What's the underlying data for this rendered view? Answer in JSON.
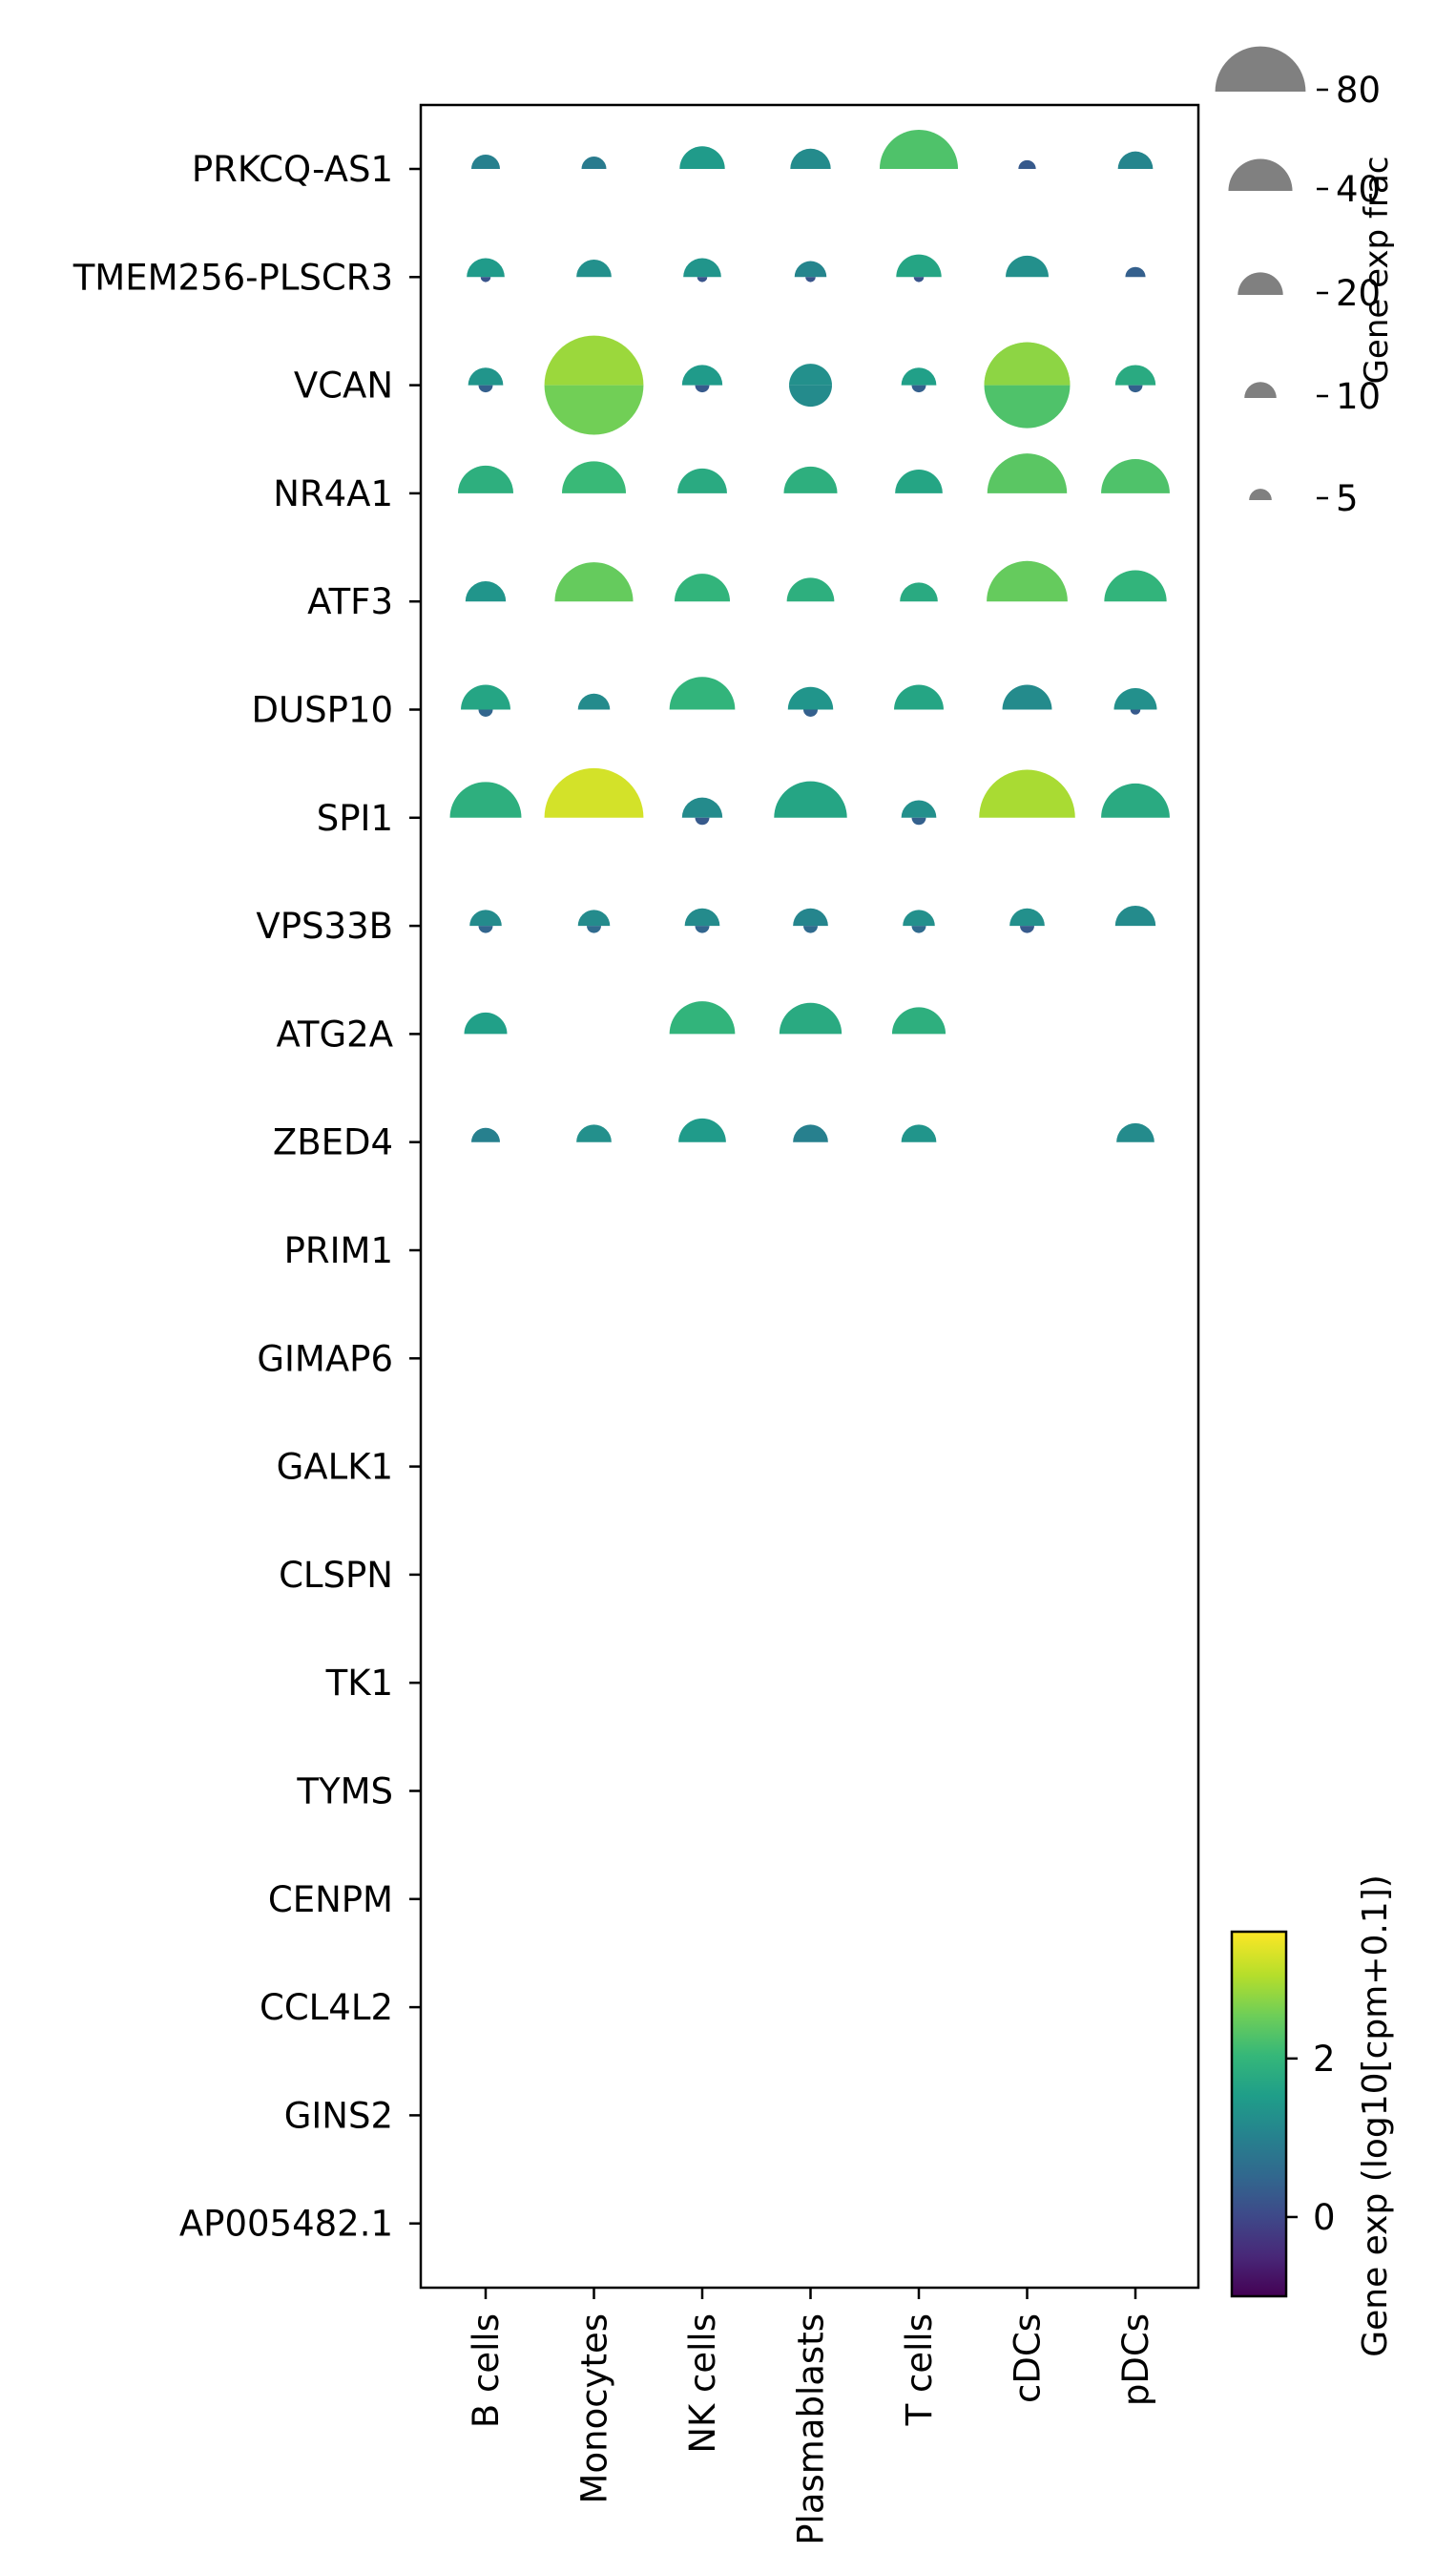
{
  "chart_data": {
    "type": "split-dot-plot",
    "genes": [
      "PRKCQ-AS1",
      "TMEM256-PLSCR3",
      "VCAN",
      "NR4A1",
      "ATF3",
      "DUSP10",
      "SPI1",
      "VPS33B",
      "ATG2A",
      "ZBED4",
      "PRIM1",
      "GIMAP6",
      "GALK1",
      "CLSPN",
      "TK1",
      "TYMS",
      "CENPM",
      "CCL4L2",
      "GINS2",
      "AP005482.1"
    ],
    "cell_types": [
      "B cells",
      "Monocytes",
      "NK cells",
      "Plasmablasts",
      "T cells",
      "cDCs",
      "pDCs"
    ],
    "upper": {
      "frac": [
        [
          8,
          6,
          20,
          16,
          60,
          3,
          12
        ],
        [
          14,
          12,
          14,
          10,
          20,
          18,
          4
        ],
        [
          12,
          0,
          16,
          0,
          12,
          72,
          16
        ],
        [
          30,
          40,
          24,
          28,
          22,
          62,
          46
        ],
        [
          16,
          60,
          30,
          22,
          14,
          64,
          38
        ],
        [
          24,
          10,
          42,
          20,
          24,
          24,
          18
        ],
        [
          50,
          96,
          16,
          52,
          12,
          90,
          46
        ],
        [
          10,
          10,
          12,
          12,
          10,
          12,
          16
        ],
        [
          18,
          0,
          42,
          38,
          28,
          0,
          0
        ],
        [
          8,
          12,
          22,
          12,
          12,
          0,
          14
        ],
        [
          0,
          0,
          0,
          0,
          0,
          0,
          0
        ],
        [
          0,
          0,
          0,
          0,
          0,
          0,
          0
        ],
        [
          0,
          0,
          0,
          0,
          0,
          0,
          0
        ],
        [
          0,
          0,
          0,
          0,
          0,
          0,
          0
        ],
        [
          0,
          0,
          0,
          0,
          0,
          0,
          0
        ],
        [
          0,
          0,
          0,
          0,
          0,
          0,
          0
        ],
        [
          0,
          0,
          0,
          0,
          0,
          0,
          0
        ],
        [
          0,
          0,
          0,
          0,
          0,
          0,
          0
        ],
        [
          0,
          0,
          0,
          0,
          0,
          0,
          0
        ],
        [
          0,
          0,
          0,
          0,
          0,
          0,
          0
        ]
      ],
      "exp": [
        [
          1.0,
          0.9,
          1.5,
          1.2,
          2.3,
          0.3,
          1.1
        ],
        [
          1.5,
          1.3,
          1.4,
          1.1,
          1.7,
          1.3,
          0.4
        ],
        [
          1.4,
          0,
          1.5,
          0,
          1.6,
          2.8,
          1.8
        ],
        [
          1.9,
          2.1,
          1.8,
          1.9,
          1.7,
          2.4,
          2.3
        ],
        [
          1.4,
          2.5,
          2.0,
          1.9,
          1.8,
          2.5,
          2.0
        ],
        [
          1.7,
          1.2,
          2.0,
          1.4,
          1.7,
          1.2,
          1.3
        ],
        [
          1.9,
          3.3,
          1.2,
          1.7,
          1.3,
          3.0,
          1.8
        ],
        [
          1.2,
          1.2,
          1.2,
          1.1,
          1.3,
          1.3,
          1.2
        ],
        [
          1.6,
          0,
          2.0,
          1.8,
          1.9,
          0,
          0
        ],
        [
          1.0,
          1.3,
          1.5,
          1.0,
          1.4,
          0,
          1.2
        ],
        [
          0,
          0,
          0,
          0,
          0,
          0,
          0
        ],
        [
          0,
          0,
          0,
          0,
          0,
          0,
          0
        ],
        [
          0,
          0,
          0,
          0,
          0,
          0,
          0
        ],
        [
          0,
          0,
          0,
          0,
          0,
          0,
          0
        ],
        [
          0,
          0,
          0,
          0,
          0,
          0,
          0
        ],
        [
          0,
          0,
          0,
          0,
          0,
          0,
          0
        ],
        [
          0,
          0,
          0,
          0,
          0,
          0,
          0
        ],
        [
          0,
          0,
          0,
          0,
          0,
          0,
          0
        ],
        [
          0,
          0,
          0,
          0,
          0,
          0,
          0
        ],
        [
          0,
          0,
          0,
          0,
          0,
          0,
          0
        ]
      ]
    },
    "lower": {
      "frac": [
        [
          0,
          0,
          0,
          0,
          0,
          0,
          0
        ],
        [
          1,
          0,
          1,
          1,
          1,
          0,
          0
        ],
        [
          2,
          0,
          2,
          0,
          2,
          0,
          2
        ],
        [
          0,
          0,
          0,
          0,
          0,
          0,
          0
        ],
        [
          0,
          0,
          0,
          0,
          0,
          0,
          0
        ],
        [
          2,
          0,
          0,
          2,
          0,
          0,
          1
        ],
        [
          0,
          0,
          2,
          0,
          2,
          0,
          0
        ],
        [
          2,
          2,
          2,
          2,
          2,
          2,
          0
        ],
        [
          0,
          0,
          0,
          0,
          0,
          0,
          0
        ],
        [
          0,
          0,
          0,
          0,
          0,
          0,
          0
        ],
        [
          0,
          0,
          0,
          0,
          0,
          0,
          0
        ],
        [
          0,
          0,
          0,
          0,
          0,
          0,
          0
        ],
        [
          0,
          0,
          0,
          0,
          0,
          0,
          0
        ],
        [
          0,
          0,
          0,
          0,
          0,
          0,
          0
        ],
        [
          0,
          0,
          0,
          0,
          0,
          0,
          0
        ],
        [
          0,
          0,
          0,
          0,
          0,
          0,
          0
        ],
        [
          0,
          0,
          0,
          0,
          0,
          0,
          0
        ],
        [
          0,
          0,
          0,
          0,
          0,
          0,
          0
        ],
        [
          0,
          0,
          0,
          0,
          0,
          0,
          0
        ],
        [
          0,
          0,
          0,
          0,
          0,
          0,
          0
        ]
      ],
      "exp": [
        [
          0,
          0,
          0,
          0,
          0,
          0,
          0
        ],
        [
          0.2,
          0,
          0.2,
          0.2,
          0.2,
          0,
          0
        ],
        [
          0.4,
          0,
          0.3,
          0,
          0.4,
          0,
          0.4
        ],
        [
          0,
          0,
          0,
          0,
          0,
          0,
          0
        ],
        [
          0,
          0,
          0,
          0,
          0,
          0,
          0
        ],
        [
          0.5,
          0,
          0,
          0.4,
          0,
          0,
          0.3
        ],
        [
          0,
          0,
          0.3,
          0,
          0.4,
          0,
          0
        ],
        [
          0.5,
          0.6,
          0.5,
          0.6,
          0.6,
          0.3,
          0
        ],
        [
          0,
          0,
          0,
          0,
          0,
          0,
          0
        ],
        [
          0,
          0,
          0,
          0,
          0,
          0,
          0
        ],
        [
          0,
          0,
          0,
          0,
          0,
          0,
          0
        ],
        [
          0,
          0,
          0,
          0,
          0,
          0,
          0
        ],
        [
          0,
          0,
          0,
          0,
          0,
          0,
          0
        ],
        [
          0,
          0,
          0,
          0,
          0,
          0,
          0
        ],
        [
          0,
          0,
          0,
          0,
          0,
          0,
          0
        ],
        [
          0,
          0,
          0,
          0,
          0,
          0,
          0
        ],
        [
          0,
          0,
          0,
          0,
          0,
          0,
          0
        ],
        [
          0,
          0,
          0,
          0,
          0,
          0,
          0
        ],
        [
          0,
          0,
          0,
          0,
          0,
          0,
          0
        ],
        [
          0,
          0,
          0,
          0,
          0,
          0,
          0
        ]
      ]
    },
    "full_circles": [
      {
        "gene": "VCAN",
        "cell": "Monocytes",
        "frac": 96,
        "exp_upper": 2.9,
        "exp_lower": 2.6
      },
      {
        "gene": "VCAN",
        "cell": "Plasmablasts",
        "frac": 18,
        "exp_upper": 1.3,
        "exp_lower": 1.2
      },
      {
        "gene": "VCAN",
        "cell": "cDCs",
        "frac": 72,
        "exp_upper": 2.8,
        "exp_lower": 2.3
      }
    ],
    "size_legend": {
      "title": "Gene exp frac",
      "values": [
        80,
        40,
        20,
        10,
        5
      ]
    },
    "colorbar": {
      "title": "Gene exp (log10[cpm+0.1])",
      "colormap": "viridis",
      "range": [
        -1,
        3.6
      ],
      "ticks": [
        0,
        2
      ]
    },
    "colors": {
      "viridis": [
        "#440154",
        "#482878",
        "#3e4989",
        "#31688e",
        "#26828e",
        "#1f9e89",
        "#35b779",
        "#6ece58",
        "#b5de2b",
        "#fde725"
      ]
    }
  }
}
